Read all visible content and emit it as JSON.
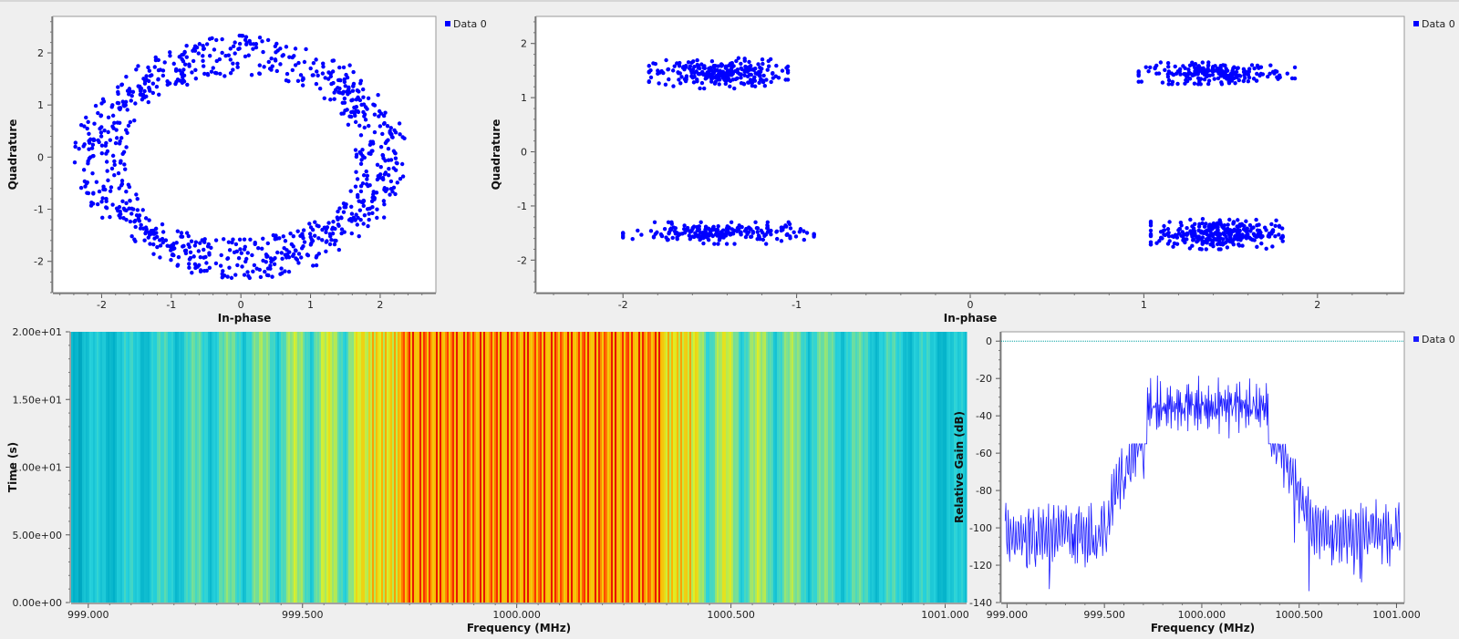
{
  "chart_data": [
    {
      "id": "const1",
      "type": "scatter",
      "xlabel": "In-phase",
      "ylabel": "Quadrature",
      "xlim": [
        -2.7,
        2.8
      ],
      "ylim": [
        -2.6,
        2.7
      ],
      "xticks": [
        -2,
        -1,
        0,
        1,
        2
      ],
      "yticks": [
        -2,
        -1,
        0,
        1,
        2
      ],
      "series": [
        {
          "name": "Data 0",
          "color": "#0000ff",
          "shape": "ring",
          "center": [
            0,
            0
          ],
          "rx_range": [
            1.65,
            2.4
          ],
          "ry_range": [
            1.55,
            2.35
          ],
          "points": 900
        }
      ],
      "legend": "right"
    },
    {
      "id": "const2",
      "type": "scatter",
      "xlabel": "In-phase",
      "ylabel": "Quadrature",
      "xlim": [
        -2.5,
        2.5
      ],
      "ylim": [
        -2.6,
        2.5
      ],
      "xticks": [
        -2,
        -1,
        0,
        1,
        2
      ],
      "yticks": [
        -2,
        -1,
        0,
        1,
        2
      ],
      "series": [
        {
          "name": "Data 0",
          "color": "#0000ff",
          "shape": "clusters",
          "clusters": [
            {
              "center": [
                -1.45,
                1.45
              ],
              "spread": [
                0.4,
                0.28
              ],
              "points": 260
            },
            {
              "center": [
                1.42,
                1.45
              ],
              "spread": [
                0.45,
                0.2
              ],
              "points": 220
            },
            {
              "center": [
                -1.45,
                -1.5
              ],
              "spread": [
                0.55,
                0.2
              ],
              "points": 220
            },
            {
              "center": [
                1.42,
                -1.52
              ],
              "spread": [
                0.38,
                0.28
              ],
              "points": 320
            }
          ]
        }
      ],
      "legend": "right"
    },
    {
      "id": "waterfall",
      "type": "heatmap",
      "xlabel": "Frequency (MHz)",
      "ylabel": "Time (s)",
      "xlim": [
        998.96,
        1001.05
      ],
      "ylim": [
        0,
        20
      ],
      "xticks": [
        "999.000",
        "999.500",
        "1000.000",
        "1000.500",
        "1001.000"
      ],
      "xtick_values": [
        999.0,
        999.5,
        1000.0,
        1000.5,
        1001.0
      ],
      "yticks": [
        "0.00e+00",
        "5.00e+00",
        "1.00e+01",
        "1.50e+01",
        "2.00e+01"
      ],
      "ytick_values": [
        0,
        5,
        10,
        15,
        20
      ],
      "passband": [
        999.72,
        1000.34
      ]
    },
    {
      "id": "spectrum",
      "type": "line",
      "xlabel": "Frequency (MHz)",
      "ylabel": "Relative Gain (dB)",
      "xlim": [
        998.97,
        1001.04
      ],
      "ylim": [
        -140,
        5
      ],
      "xticks": [
        "999.000",
        "999.500",
        "1000.000",
        "1000.500",
        "1001.000"
      ],
      "xtick_values": [
        999.0,
        999.5,
        1000.0,
        1000.5,
        1001.0
      ],
      "yticks": [
        0,
        -20,
        -40,
        -60,
        -80,
        -100,
        -120,
        -140
      ],
      "reference_line": 0,
      "passband_level": -35,
      "noise_level": -103,
      "series": [
        {
          "name": "Data 0",
          "color": "#1a1aff"
        }
      ],
      "legend": "right"
    }
  ],
  "colors": {
    "points": "#0000ff",
    "refline": "#00a0a0",
    "axis": "#555555"
  }
}
